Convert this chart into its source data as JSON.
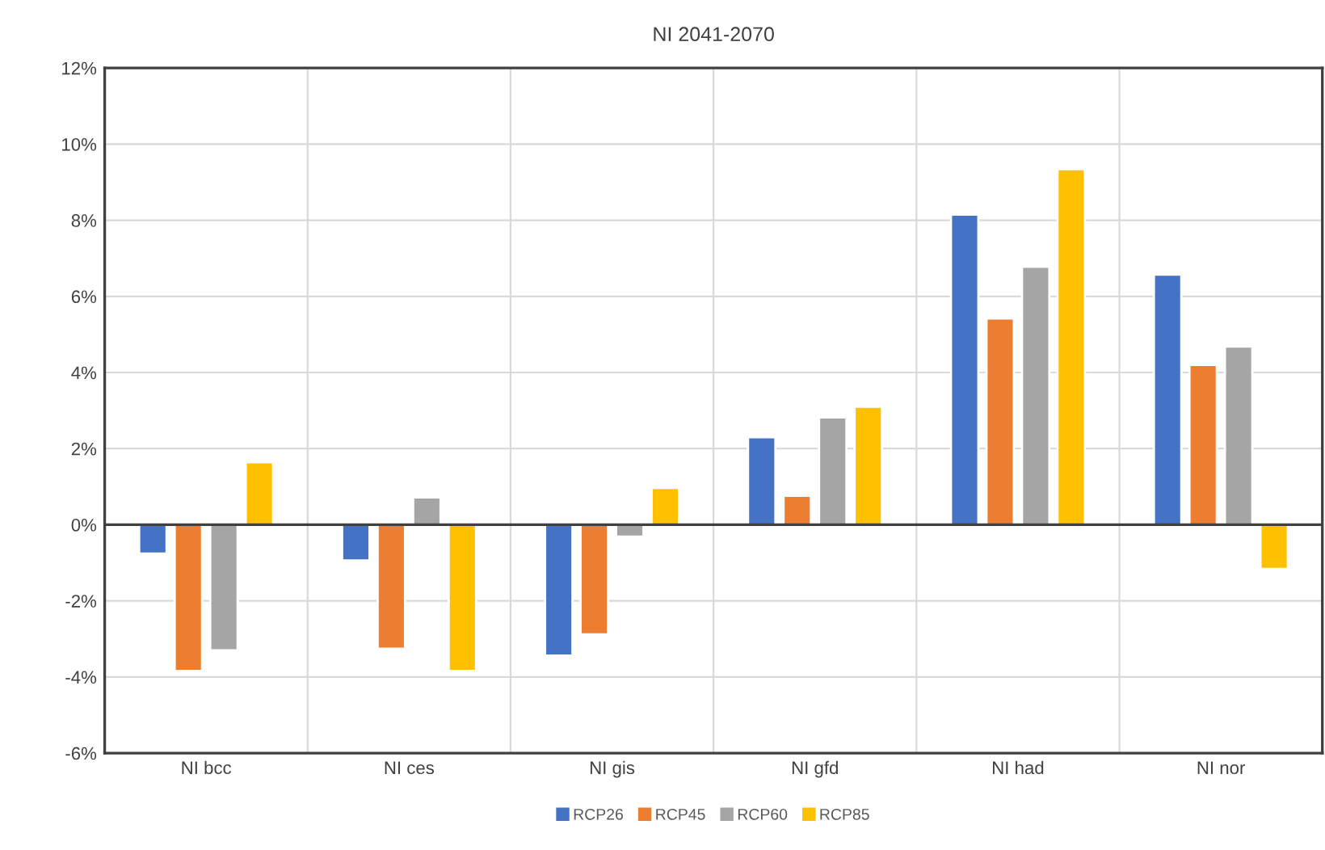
{
  "chart_data": {
    "type": "bar",
    "title": "NI 2041-2070",
    "categories": [
      "NI bcc",
      "NI ces",
      "NI gis",
      "NI gfd",
      "NI had",
      "NI nor"
    ],
    "series": [
      {
        "name": "RCP26",
        "color": "#4472c4",
        "values": [
          -0.76,
          -0.94,
          -3.44,
          2.3,
          8.15,
          6.57
        ]
      },
      {
        "name": "RCP45",
        "color": "#ed7d31",
        "values": [
          -3.84,
          -3.26,
          -2.88,
          0.76,
          5.42,
          4.2
        ]
      },
      {
        "name": "RCP60",
        "color": "#a5a5a5",
        "values": [
          -3.3,
          0.72,
          -0.31,
          2.82,
          6.78,
          4.68
        ]
      },
      {
        "name": "RCP85",
        "color": "#ffc000",
        "values": [
          1.64,
          -3.84,
          0.97,
          3.1,
          9.34,
          -1.16
        ]
      }
    ],
    "ylim": [
      -6,
      12
    ],
    "yticks": [
      {
        "value": -6,
        "label": "-6%"
      },
      {
        "value": -4,
        "label": "-4%"
      },
      {
        "value": -2,
        "label": "-2%"
      },
      {
        "value": 0,
        "label": "0%"
      },
      {
        "value": 2,
        "label": "2%"
      },
      {
        "value": 4,
        "label": "4%"
      },
      {
        "value": 6,
        "label": "6%"
      },
      {
        "value": 8,
        "label": "8%"
      },
      {
        "value": 10,
        "label": "10%"
      },
      {
        "value": 12,
        "label": "12%"
      }
    ],
    "grid": true,
    "legend": "bottom"
  }
}
